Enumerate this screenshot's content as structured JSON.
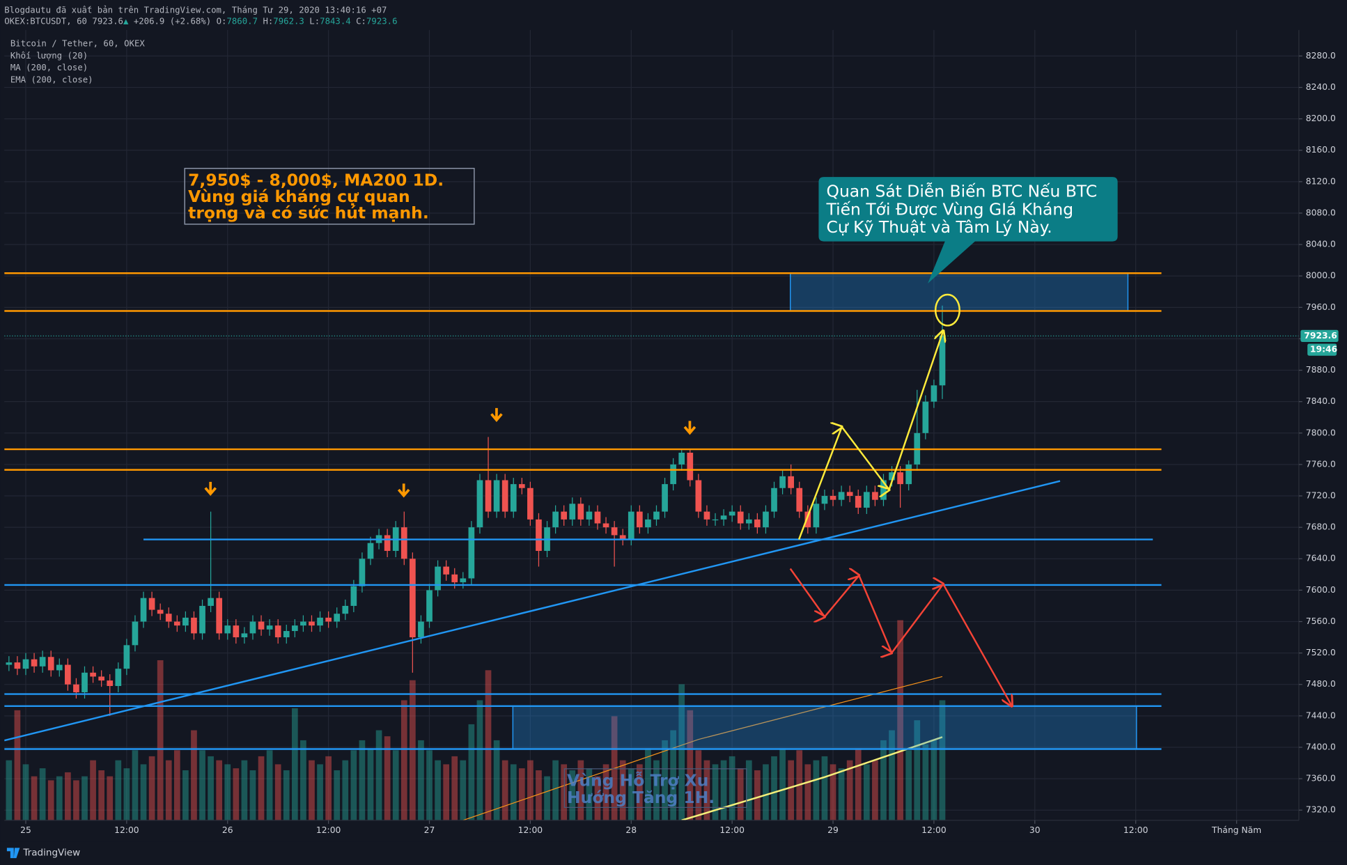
{
  "header": {
    "publisher": "Blogdautu đã xuất bản trên TradingView.com, Tháng Tư 29, 2020 13:40:16 +07",
    "symbol": "OKEX:BTCUSDT, 60",
    "price": "7923.6",
    "arrow": "▲",
    "change": "+206.9 (+2.68%)",
    "ohlc": [
      {
        "label": "O:",
        "value": "7860.7"
      },
      {
        "label": "H:",
        "value": "7962.3"
      },
      {
        "label": "L:",
        "value": "7843.4"
      },
      {
        "label": "C:",
        "value": "7923.6"
      }
    ]
  },
  "chart_data": {
    "type": "candlestick",
    "title": "Bitcoin / Tether, 60, OKEX",
    "volume_name": "Khối lượng (20)",
    "countdown": "19:46",
    "up_color": "#26a69a",
    "down_color": "#ef5350",
    "grid": true,
    "xlim": [
      -2.55,
      151.4
    ],
    "ylim": [
      7307,
      8313
    ],
    "xticks": [
      {
        "value": 0,
        "label": "25"
      },
      {
        "value": 12,
        "label": "12:00"
      },
      {
        "value": 24,
        "label": "26"
      },
      {
        "value": 36,
        "label": "12:00"
      },
      {
        "value": 48,
        "label": "27"
      },
      {
        "value": 60,
        "label": "12:00"
      },
      {
        "value": 72,
        "label": "28"
      },
      {
        "value": 84,
        "label": "12:00"
      },
      {
        "value": 96,
        "label": "29"
      },
      {
        "value": 108,
        "label": "12:00"
      },
      {
        "value": 120,
        "label": "30"
      },
      {
        "value": 132,
        "label": "12:00"
      },
      {
        "value": 144,
        "label": "Tháng Năm"
      }
    ],
    "yticks": [
      {
        "value": 7320,
        "label": "7320.0"
      },
      {
        "value": 7360,
        "label": "7360.0"
      },
      {
        "value": 7400,
        "label": "7400.0"
      },
      {
        "value": 7440,
        "label": "7440.0"
      },
      {
        "value": 7480,
        "label": "7480.0"
      },
      {
        "value": 7520,
        "label": "7520.0"
      },
      {
        "value": 7560,
        "label": "7560.0"
      },
      {
        "value": 7600,
        "label": "7600.0"
      },
      {
        "value": 7640,
        "label": "7640.0"
      },
      {
        "value": 7680,
        "label": "7680.0"
      },
      {
        "value": 7720,
        "label": "7720.0"
      },
      {
        "value": 7760,
        "label": "7760.0"
      },
      {
        "value": 7800,
        "label": "7800.0"
      },
      {
        "value": 7840,
        "label": "7840.0"
      },
      {
        "value": 7880,
        "label": "7880.0"
      },
      {
        "value": 7920,
        "label": "7920.0"
      },
      {
        "value": 7960,
        "label": "7960.0"
      },
      {
        "value": 8000,
        "label": "8000.0"
      },
      {
        "value": 8040,
        "label": "8040.0"
      },
      {
        "value": 8080,
        "label": "8080.0"
      },
      {
        "value": 8120,
        "label": "8120.0"
      },
      {
        "value": 8160,
        "label": "8160.0"
      },
      {
        "value": 8200,
        "label": "8200.0"
      },
      {
        "value": 8240,
        "label": "8240.0"
      },
      {
        "value": 8280,
        "label": "8280.0"
      }
    ],
    "x": [
      -2,
      -1,
      0,
      1,
      2,
      3,
      4,
      5,
      6,
      7,
      8,
      9,
      10,
      11,
      12,
      13,
      14,
      15,
      16,
      17,
      18,
      19,
      20,
      21,
      22,
      23,
      24,
      25,
      26,
      27,
      28,
      29,
      30,
      31,
      32,
      33,
      34,
      35,
      36,
      37,
      38,
      39,
      40,
      41,
      42,
      43,
      44,
      45,
      46,
      47,
      48,
      49,
      50,
      51,
      52,
      53,
      54,
      55,
      56,
      57,
      58,
      59,
      60,
      61,
      62,
      63,
      64,
      65,
      66,
      67,
      68,
      69,
      70,
      71,
      72,
      73,
      74,
      75,
      76,
      77,
      78,
      79,
      80,
      81,
      82,
      83,
      84,
      85,
      86,
      87,
      88,
      89,
      90,
      91,
      92,
      93,
      94,
      95,
      96,
      97,
      98,
      99,
      100,
      101,
      102,
      103,
      104,
      105,
      106,
      107,
      108,
      109
    ],
    "open": [
      7505,
      7508,
      7500,
      7512,
      7503,
      7515,
      7498,
      7505,
      7480,
      7470,
      7495,
      7490,
      7485,
      7478,
      7500,
      7530,
      7560,
      7590,
      7575,
      7570,
      7560,
      7555,
      7565,
      7545,
      7580,
      7590,
      7545,
      7555,
      7540,
      7545,
      7560,
      7550,
      7555,
      7540,
      7548,
      7555,
      7560,
      7555,
      7565,
      7560,
      7570,
      7580,
      7605,
      7640,
      7660,
      7670,
      7650,
      7680,
      7640,
      7540,
      7560,
      7600,
      7630,
      7620,
      7610,
      7615,
      7680,
      7740,
      7700,
      7740,
      7700,
      7735,
      7730,
      7690,
      7650,
      7680,
      7700,
      7690,
      7710,
      7690,
      7700,
      7685,
      7680,
      7670,
      7665,
      7700,
      7680,
      7690,
      7700,
      7735,
      7760,
      7775,
      7740,
      7700,
      7690,
      7690,
      7695,
      7700,
      7685,
      7690,
      7680,
      7700,
      7730,
      7745,
      7730,
      7700,
      7680,
      7710,
      7720,
      7715,
      7725,
      7720,
      7705,
      7725,
      7715,
      7740,
      7750,
      7735,
      7760,
      7800,
      7840,
      7860.7
    ],
    "high": [
      7516,
      7516,
      7520,
      7520,
      7523,
      7523,
      7513,
      7513,
      7488,
      7503,
      7503,
      7498,
      7493,
      7508,
      7538,
      7568,
      7598,
      7598,
      7583,
      7578,
      7568,
      7573,
      7573,
      7588,
      7700,
      7598,
      7563,
      7563,
      7553,
      7568,
      7568,
      7563,
      7563,
      7556,
      7563,
      7568,
      7568,
      7573,
      7573,
      7578,
      7588,
      7613,
      7648,
      7668,
      7678,
      7678,
      7688,
      7700,
      7648,
      7568,
      7608,
      7638,
      7638,
      7628,
      7623,
      7688,
      7748,
      7795,
      7748,
      7748,
      7743,
      7743,
      7738,
      7698,
      7688,
      7708,
      7708,
      7718,
      7718,
      7708,
      7708,
      7693,
      7688,
      7678,
      7708,
      7708,
      7698,
      7708,
      7743,
      7768,
      7780,
      7780,
      7748,
      7708,
      7698,
      7703,
      7708,
      7708,
      7698,
      7698,
      7708,
      7738,
      7753,
      7760,
      7738,
      7708,
      7718,
      7728,
      7728,
      7733,
      7733,
      7728,
      7733,
      7733,
      7748,
      7758,
      7758,
      7765,
      7855,
      7848,
      7868,
      7962.3
    ],
    "low": [
      7497,
      7492,
      7492,
      7495,
      7495,
      7490,
      7490,
      7472,
      7462,
      7462,
      7482,
      7477,
      7440,
      7470,
      7492,
      7522,
      7552,
      7567,
      7562,
      7552,
      7547,
      7547,
      7537,
      7537,
      7572,
      7537,
      7537,
      7532,
      7532,
      7537,
      7542,
      7542,
      7532,
      7532,
      7540,
      7547,
      7547,
      7547,
      7552,
      7552,
      7562,
      7572,
      7597,
      7632,
      7652,
      7642,
      7642,
      7632,
      7495,
      7532,
      7552,
      7592,
      7612,
      7602,
      7602,
      7607,
      7672,
      7692,
      7692,
      7692,
      7692,
      7722,
      7682,
      7630,
      7642,
      7672,
      7682,
      7682,
      7682,
      7682,
      7677,
      7672,
      7630,
      7657,
      7657,
      7672,
      7672,
      7682,
      7692,
      7727,
      7752,
      7732,
      7692,
      7682,
      7682,
      7682,
      7687,
      7677,
      7677,
      7672,
      7672,
      7692,
      7722,
      7722,
      7692,
      7672,
      7672,
      7702,
      7707,
      7707,
      7712,
      7697,
      7697,
      7707,
      7707,
      7732,
      7705,
      7727,
      7752,
      7792,
      7832,
      7843.4
    ],
    "close": [
      7508,
      7500,
      7512,
      7503,
      7515,
      7498,
      7505,
      7480,
      7470,
      7495,
      7490,
      7485,
      7478,
      7500,
      7530,
      7560,
      7590,
      7575,
      7570,
      7560,
      7555,
      7565,
      7545,
      7580,
      7590,
      7545,
      7555,
      7540,
      7545,
      7560,
      7550,
      7555,
      7540,
      7548,
      7555,
      7560,
      7555,
      7565,
      7560,
      7570,
      7580,
      7605,
      7640,
      7660,
      7670,
      7650,
      7680,
      7640,
      7540,
      7560,
      7600,
      7630,
      7620,
      7610,
      7615,
      7680,
      7740,
      7700,
      7740,
      7700,
      7735,
      7730,
      7690,
      7650,
      7680,
      7700,
      7690,
      7710,
      7690,
      7700,
      7685,
      7680,
      7670,
      7665,
      7700,
      7680,
      7690,
      7700,
      7735,
      7760,
      7775,
      7740,
      7700,
      7690,
      7690,
      7695,
      7700,
      7685,
      7690,
      7680,
      7700,
      7730,
      7745,
      7730,
      7700,
      7680,
      7710,
      7720,
      7715,
      7725,
      7720,
      7705,
      7725,
      7715,
      7740,
      7750,
      7735,
      7760,
      7800,
      7840,
      7860.7,
      7923.6
    ],
    "volume": [
      30,
      55,
      28,
      22,
      26,
      20,
      22,
      24,
      20,
      22,
      30,
      25,
      22,
      30,
      26,
      35,
      28,
      32,
      80,
      30,
      35,
      25,
      45,
      35,
      32,
      30,
      28,
      26,
      30,
      25,
      32,
      35,
      28,
      25,
      56,
      40,
      30,
      28,
      32,
      25,
      30,
      35,
      40,
      36,
      45,
      42,
      35,
      60,
      70,
      40,
      35,
      30,
      28,
      32,
      30,
      48,
      60,
      75,
      40,
      30,
      28,
      26,
      30,
      25,
      22,
      30,
      28,
      25,
      30,
      26,
      22,
      28,
      52,
      30,
      26,
      28,
      36,
      30,
      40,
      45,
      68,
      55,
      35,
      30,
      28,
      30,
      32,
      26,
      30,
      25,
      28,
      32,
      36,
      30,
      35,
      28,
      30,
      32,
      28,
      26,
      30,
      36,
      28,
      30,
      40,
      45,
      100,
      35,
      50,
      38,
      40,
      60
    ],
    "series": [
      {
        "name": "MA (200, close)",
        "color": "#f7931a",
        "x": [
          52,
          80,
          109
        ],
        "values": [
          7307,
          7410,
          7490
        ]
      },
      {
        "name": "EMA (200, close)",
        "color": "#f5f07a",
        "x": [
          78,
          95,
          109
        ],
        "values": [
          7307,
          7362,
          7413
        ]
      }
    ]
  },
  "annotations": {
    "resistance": [
      "7,950$ - 8,000$, MA200 1D.",
      "Vùng giá kháng cự quan",
      "trọng và có sức hút mạnh."
    ],
    "callout": [
      "Quan Sát Diễn Biến BTC Nếu BTC",
      "Tiến Tới Được Vùng GIá Kháng",
      "Cự Kỹ Thuật và Tâm Lý Này."
    ],
    "support": [
      "Vùng Hỗ Trợ Xu",
      "Hướng Tăng 1H."
    ]
  },
  "footer": {
    "brand": "TradingView"
  }
}
